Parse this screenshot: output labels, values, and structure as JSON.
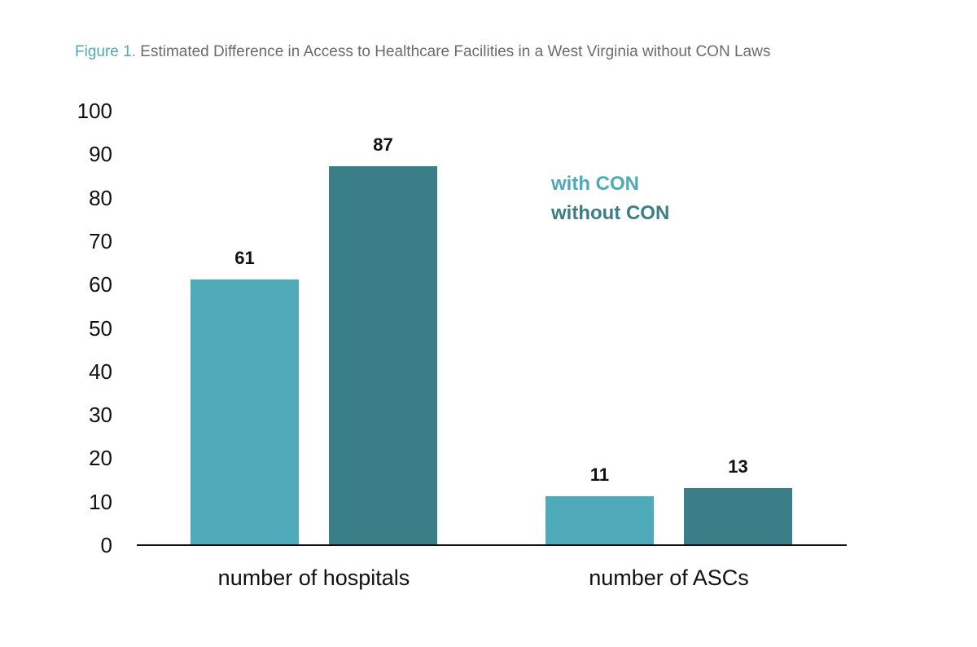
{
  "title": {
    "figure_number": "Figure 1.",
    "text": "Estimated Difference in Access to Healthcare Facilities in a West Virginia without CON Laws"
  },
  "colors": {
    "with_con": "#4eaab9",
    "without_con": "#3a7f87",
    "title_accent": "#4eaab9",
    "title_text": "#6b6b6b"
  },
  "chart_data": {
    "type": "bar",
    "title": "Figure 1. Estimated Difference in Access to Healthcare Facilities in a West Virginia without CON Laws",
    "categories": [
      "number of hospitals",
      "number of ASCs"
    ],
    "series": [
      {
        "name": "with CON",
        "values": [
          61,
          11
        ]
      },
      {
        "name": "without CON",
        "values": [
          87,
          13
        ]
      }
    ],
    "data_labels": [
      [
        "61",
        "11"
      ],
      [
        "87",
        "13"
      ]
    ],
    "xlabel": "",
    "ylabel": "",
    "ylim": [
      0,
      100
    ],
    "yticks": [
      "100",
      "90",
      "80",
      "70",
      "60",
      "50",
      "40",
      "30",
      "20",
      "10",
      "0"
    ],
    "grid": false,
    "legend_position": "top-right"
  }
}
